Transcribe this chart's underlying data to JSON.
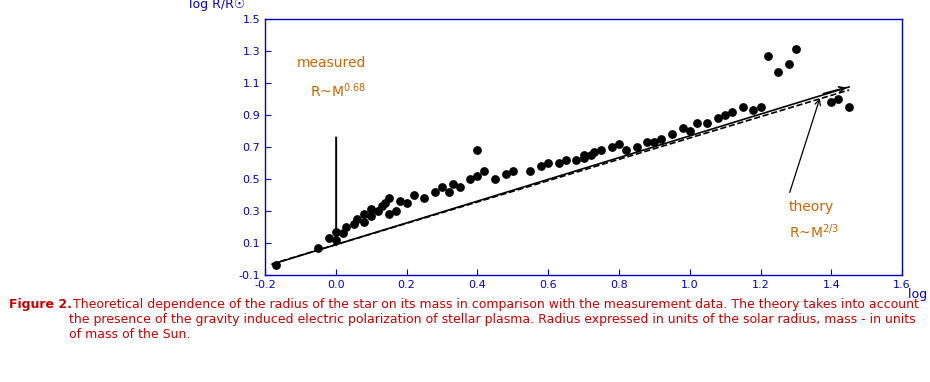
{
  "title": "",
  "xlabel": "log M/M☉",
  "ylabel": "log R/R☉",
  "xlim": [
    -0.2,
    1.6
  ],
  "ylim": [
    -0.1,
    1.5
  ],
  "xticks": [
    -0.2,
    0.0,
    0.2,
    0.4,
    0.6,
    0.8,
    1.0,
    1.2,
    1.4,
    1.6
  ],
  "yticks": [
    -0.1,
    0.1,
    0.3,
    0.5,
    0.7,
    0.9,
    1.1,
    1.3,
    1.5
  ],
  "tick_color": "#0000cc",
  "axis_color": "#0000cc",
  "line_measured_slope": 0.68,
  "line_measured_intercept": 0.09,
  "line_theory_slope": 0.6667,
  "line_theory_intercept": 0.09,
  "line_x_start": -0.18,
  "line_x_end": 1.45,
  "annotation_measured_text": "measured",
  "annotation_measured_formula": "R~M$^{0.68}$",
  "annotation_theory_text": "theory",
  "annotation_theory_formula": "R~M$^{2/3}$",
  "annotation_color": "#cc6600",
  "scatter_points": [
    [
      -0.17,
      -0.04
    ],
    [
      -0.05,
      0.07
    ],
    [
      -0.02,
      0.13
    ],
    [
      0.0,
      0.12
    ],
    [
      0.0,
      0.17
    ],
    [
      0.02,
      0.16
    ],
    [
      0.03,
      0.2
    ],
    [
      0.05,
      0.22
    ],
    [
      0.06,
      0.25
    ],
    [
      0.08,
      0.23
    ],
    [
      0.08,
      0.28
    ],
    [
      0.1,
      0.27
    ],
    [
      0.1,
      0.31
    ],
    [
      0.12,
      0.3
    ],
    [
      0.13,
      0.33
    ],
    [
      0.14,
      0.35
    ],
    [
      0.15,
      0.28
    ],
    [
      0.15,
      0.38
    ],
    [
      0.17,
      0.3
    ],
    [
      0.18,
      0.36
    ],
    [
      0.2,
      0.35
    ],
    [
      0.22,
      0.4
    ],
    [
      0.25,
      0.38
    ],
    [
      0.28,
      0.42
    ],
    [
      0.3,
      0.45
    ],
    [
      0.32,
      0.42
    ],
    [
      0.33,
      0.47
    ],
    [
      0.35,
      0.45
    ],
    [
      0.38,
      0.5
    ],
    [
      0.4,
      0.52
    ],
    [
      0.4,
      0.68
    ],
    [
      0.42,
      0.55
    ],
    [
      0.45,
      0.5
    ],
    [
      0.48,
      0.53
    ],
    [
      0.5,
      0.55
    ],
    [
      0.55,
      0.55
    ],
    [
      0.58,
      0.58
    ],
    [
      0.6,
      0.6
    ],
    [
      0.63,
      0.6
    ],
    [
      0.65,
      0.62
    ],
    [
      0.68,
      0.62
    ],
    [
      0.7,
      0.63
    ],
    [
      0.7,
      0.65
    ],
    [
      0.72,
      0.65
    ],
    [
      0.73,
      0.67
    ],
    [
      0.75,
      0.68
    ],
    [
      0.78,
      0.7
    ],
    [
      0.8,
      0.72
    ],
    [
      0.82,
      0.68
    ],
    [
      0.85,
      0.7
    ],
    [
      0.88,
      0.73
    ],
    [
      0.9,
      0.73
    ],
    [
      0.92,
      0.75
    ],
    [
      0.95,
      0.78
    ],
    [
      0.98,
      0.82
    ],
    [
      1.0,
      0.8
    ],
    [
      1.02,
      0.85
    ],
    [
      1.05,
      0.85
    ],
    [
      1.08,
      0.88
    ],
    [
      1.1,
      0.9
    ],
    [
      1.12,
      0.92
    ],
    [
      1.15,
      0.95
    ],
    [
      1.18,
      0.93
    ],
    [
      1.2,
      0.95
    ],
    [
      1.22,
      1.27
    ],
    [
      1.25,
      1.17
    ],
    [
      1.28,
      1.22
    ],
    [
      1.3,
      1.31
    ],
    [
      1.4,
      0.98
    ],
    [
      1.42,
      1.0
    ],
    [
      1.45,
      0.95
    ]
  ],
  "caption_bold": "Figure 2.",
  "caption_text": " Theoretical dependence of the radius of the star on its mass in comparison with the measurement data. The theory takes into account the presence of the gravity induced electric polarization of stellar plasma. Radius expressed in units of the solar radius, mass - in units of mass of the Sun.",
  "caption_color": "#cc0000",
  "figure_bg": "#ffffff",
  "plot_bg": "#ffffff"
}
